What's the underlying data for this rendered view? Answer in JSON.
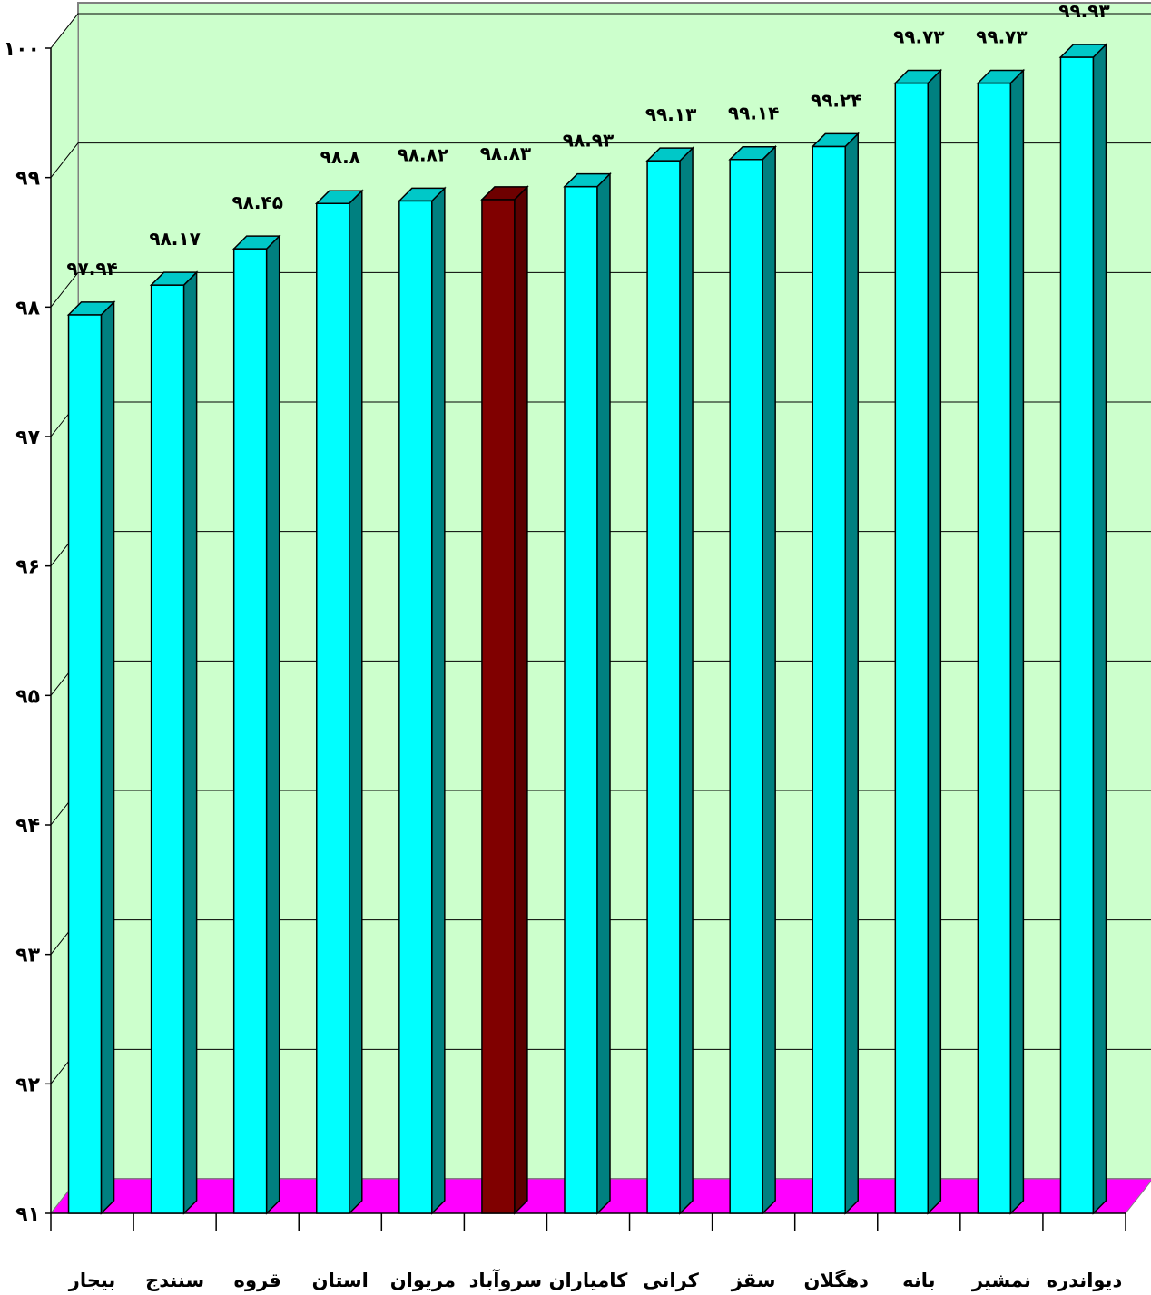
{
  "chart_data": {
    "type": "bar",
    "title": "",
    "xlabel": "",
    "ylabel": "",
    "categories": [
      "بیجار",
      "سنندج",
      "قروه",
      "استان",
      "مریوان",
      "سروآباد",
      "کامیاران",
      "کرانی",
      "سقز",
      "دهگلان",
      "بانه",
      "نمشیر",
      "دیواندره"
    ],
    "values": [
      97.94,
      98.17,
      98.45,
      98.8,
      98.82,
      98.83,
      98.93,
      99.13,
      99.14,
      99.24,
      99.73,
      99.73,
      99.93
    ],
    "value_labels": [
      "۹۷.۹۴",
      "۹۸.۱۷",
      "۹۸.۴۵",
      "۹۸.۸",
      "۹۸.۸۲",
      "۹۸.۸۳",
      "۹۸.۹۳",
      "۹۹.۱۳",
      "۹۹.۱۴",
      "۹۹.۲۴",
      "۹۹.۷۳",
      "۹۹.۷۳",
      "۹۹.۹۳"
    ],
    "ylim": [
      91,
      100
    ],
    "yticks": [
      91,
      92,
      93,
      94,
      95,
      96,
      97,
      98,
      99,
      100
    ],
    "ytick_labels": [
      "۹۱",
      "۹۲",
      "۹۳",
      "۹۴",
      "۹۵",
      "۹۶",
      "۹۷",
      "۹۸",
      "۹۹",
      "۱۰۰"
    ],
    "grid": true,
    "highlight_index": 5,
    "legend": "none",
    "colors": {
      "bar_front": "#00ffff",
      "bar_side": "#008080",
      "bar_top": "#00c8c8",
      "highlight_front": "#800000",
      "highlight_side": "#5a0000",
      "highlight_top": "#6e0000",
      "wall": "#ccffcc",
      "floor": "#ff00ff",
      "gridline": "#000000"
    }
  }
}
